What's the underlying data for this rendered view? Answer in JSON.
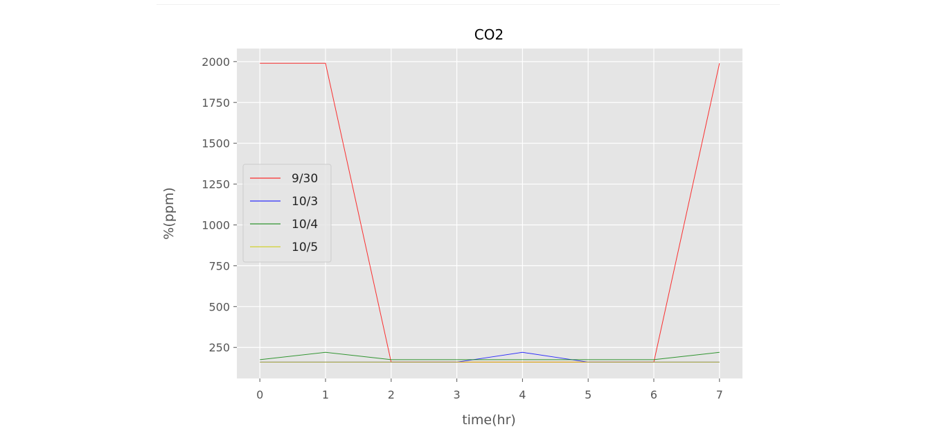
{
  "chart_data": {
    "type": "line",
    "title": "CO2",
    "xlabel": "time(hr)",
    "ylabel": "%(ppm)",
    "x": [
      0,
      1,
      2,
      3,
      4,
      5,
      6,
      7
    ],
    "xlim": [
      -0.35,
      7.35
    ],
    "ylim": [
      60,
      2080
    ],
    "xticks": [
      "0",
      "1",
      "2",
      "3",
      "4",
      "5",
      "6",
      "7"
    ],
    "yticks": [
      250,
      500,
      750,
      1000,
      1250,
      1500,
      1750,
      2000
    ],
    "grid": true,
    "legend_position": "center-left",
    "series": [
      {
        "name": "9/30",
        "color": "#ff0000",
        "values": [
          1990,
          1990,
          160,
          160,
          160,
          160,
          160,
          1990
        ]
      },
      {
        "name": "10/3",
        "color": "#0000ff",
        "values": [
          160,
          160,
          160,
          160,
          220,
          160,
          160,
          160
        ]
      },
      {
        "name": "10/4",
        "color": "#008000",
        "values": [
          175,
          220,
          175,
          175,
          175,
          175,
          175,
          220
        ]
      },
      {
        "name": "10/5",
        "color": "#cccc00",
        "values": [
          160,
          160,
          160,
          160,
          160,
          160,
          160,
          160
        ]
      }
    ]
  }
}
